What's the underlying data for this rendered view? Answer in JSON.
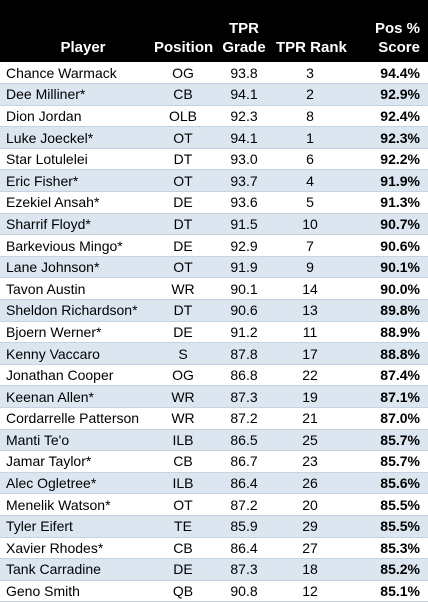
{
  "header": {
    "player": "Player",
    "position": "Position",
    "grade_line1": "TPR",
    "grade_line2": "Grade",
    "rank": "TPR Rank",
    "score_line1": "Pos %",
    "score_line2": "Score"
  },
  "rows": [
    {
      "player": "Chance Warmack",
      "position": "OG",
      "grade": "93.8",
      "rank": "3",
      "score": "94.4%"
    },
    {
      "player": "Dee Milliner*",
      "position": "CB",
      "grade": "94.1",
      "rank": "2",
      "score": "92.9%"
    },
    {
      "player": "Dion Jordan",
      "position": "OLB",
      "grade": "92.3",
      "rank": "8",
      "score": "92.4%"
    },
    {
      "player": "Luke Joeckel*",
      "position": "OT",
      "grade": "94.1",
      "rank": "1",
      "score": "92.3%"
    },
    {
      "player": "Star Lotulelei",
      "position": "DT",
      "grade": "93.0",
      "rank": "6",
      "score": "92.2%"
    },
    {
      "player": "Eric Fisher*",
      "position": "OT",
      "grade": "93.7",
      "rank": "4",
      "score": "91.9%"
    },
    {
      "player": "Ezekiel Ansah*",
      "position": "DE",
      "grade": "93.6",
      "rank": "5",
      "score": "91.3%"
    },
    {
      "player": "Sharrif Floyd*",
      "position": "DT",
      "grade": "91.5",
      "rank": "10",
      "score": "90.7%"
    },
    {
      "player": "Barkevious Mingo*",
      "position": "DE",
      "grade": "92.9",
      "rank": "7",
      "score": "90.6%"
    },
    {
      "player": "Lane Johnson*",
      "position": "OT",
      "grade": "91.9",
      "rank": "9",
      "score": "90.1%"
    },
    {
      "player": "Tavon Austin",
      "position": "WR",
      "grade": "90.1",
      "rank": "14",
      "score": "90.0%"
    },
    {
      "player": "Sheldon Richardson*",
      "position": "DT",
      "grade": "90.6",
      "rank": "13",
      "score": "89.8%"
    },
    {
      "player": "Bjoern Werner*",
      "position": "DE",
      "grade": "91.2",
      "rank": "11",
      "score": "88.9%"
    },
    {
      "player": "Kenny Vaccaro",
      "position": "S",
      "grade": "87.8",
      "rank": "17",
      "score": "88.8%"
    },
    {
      "player": "Jonathan Cooper",
      "position": "OG",
      "grade": "86.8",
      "rank": "22",
      "score": "87.4%"
    },
    {
      "player": "Keenan Allen*",
      "position": "WR",
      "grade": "87.3",
      "rank": "19",
      "score": "87.1%"
    },
    {
      "player": "Cordarrelle Patterson",
      "position": "WR",
      "grade": "87.2",
      "rank": "21",
      "score": "87.0%"
    },
    {
      "player": "Manti Te'o",
      "position": "ILB",
      "grade": "86.5",
      "rank": "25",
      "score": "85.7%"
    },
    {
      "player": "Jamar Taylor*",
      "position": "CB",
      "grade": "86.7",
      "rank": "23",
      "score": "85.7%"
    },
    {
      "player": "Alec Ogletree*",
      "position": "ILB",
      "grade": "86.4",
      "rank": "26",
      "score": "85.6%"
    },
    {
      "player": "Menelik Watson*",
      "position": "OT",
      "grade": "87.2",
      "rank": "20",
      "score": "85.5%"
    },
    {
      "player": "Tyler Eifert",
      "position": "TE",
      "grade": "85.9",
      "rank": "29",
      "score": "85.5%"
    },
    {
      "player": "Xavier Rhodes*",
      "position": "CB",
      "grade": "86.4",
      "rank": "27",
      "score": "85.3%"
    },
    {
      "player": "Tank Carradine",
      "position": "DE",
      "grade": "87.3",
      "rank": "18",
      "score": "85.2%"
    },
    {
      "player": "Geno Smith",
      "position": "QB",
      "grade": "90.8",
      "rank": "12",
      "score": "85.1%"
    }
  ]
}
